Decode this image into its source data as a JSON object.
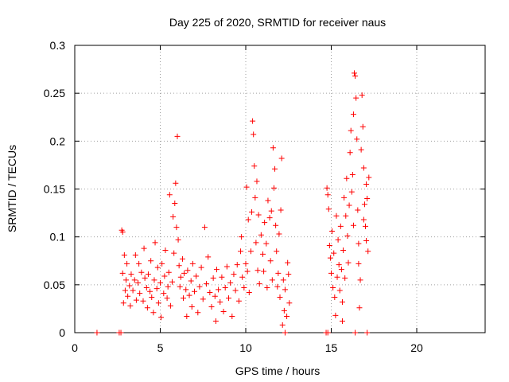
{
  "chart_data": {
    "type": "scatter",
    "title": "Day 225 of 2020, SRMTID for receiver naus",
    "xlabel": "GPS time / hours",
    "ylabel": "SRMTID / TECUs",
    "xlim": [
      0,
      24
    ],
    "ylim": [
      0,
      0.3
    ],
    "x_ticks": [
      0,
      5,
      10,
      15,
      20
    ],
    "x_tick_labels": [
      "0",
      "5",
      "10",
      "15",
      "20"
    ],
    "y_ticks": [
      0,
      0.05,
      0.1,
      0.15,
      0.2,
      0.25,
      0.3
    ],
    "y_tick_labels": [
      "0",
      "0.05",
      "0.1",
      "0.15",
      "0.2",
      "0.25",
      "0.3"
    ],
    "grid": true,
    "marker": "+",
    "series": [
      {
        "name": "SRMTID",
        "color": "#ff0000",
        "points": [
          [
            1.3,
            0.0
          ],
          [
            2.6,
            0.0
          ],
          [
            2.7,
            0.0
          ],
          [
            12.3,
            0.0
          ],
          [
            14.7,
            0.0
          ],
          [
            14.8,
            0.0
          ],
          [
            16.4,
            0.0
          ],
          [
            17.1,
            0.0
          ],
          [
            2.75,
            0.107
          ],
          [
            2.8,
            0.105
          ],
          [
            2.9,
            0.081
          ],
          [
            2.8,
            0.062
          ],
          [
            2.95,
            0.044
          ],
          [
            2.85,
            0.031
          ],
          [
            3.0,
            0.055
          ],
          [
            3.05,
            0.072
          ],
          [
            3.1,
            0.038
          ],
          [
            3.2,
            0.049
          ],
          [
            3.25,
            0.028
          ],
          [
            3.3,
            0.061
          ],
          [
            3.4,
            0.044
          ],
          [
            3.5,
            0.055
          ],
          [
            3.55,
            0.081
          ],
          [
            3.6,
            0.034
          ],
          [
            3.7,
            0.052
          ],
          [
            3.75,
            0.072
          ],
          [
            3.8,
            0.041
          ],
          [
            3.9,
            0.063
          ],
          [
            4.0,
            0.033
          ],
          [
            4.05,
            0.088
          ],
          [
            4.1,
            0.057
          ],
          [
            4.2,
            0.047
          ],
          [
            4.25,
            0.026
          ],
          [
            4.3,
            0.061
          ],
          [
            4.4,
            0.043
          ],
          [
            4.45,
            0.075
          ],
          [
            4.5,
            0.037
          ],
          [
            4.6,
            0.021
          ],
          [
            4.65,
            0.055
          ],
          [
            4.7,
            0.094
          ],
          [
            4.8,
            0.046
          ],
          [
            4.85,
            0.068
          ],
          [
            4.9,
            0.031
          ],
          [
            5.0,
            0.052
          ],
          [
            5.05,
            0.016
          ],
          [
            5.1,
            0.072
          ],
          [
            5.2,
            0.041
          ],
          [
            5.25,
            0.059
          ],
          [
            5.3,
            0.086
          ],
          [
            5.4,
            0.036
          ],
          [
            5.45,
            0.048
          ],
          [
            5.5,
            0.063
          ],
          [
            5.55,
            0.144
          ],
          [
            5.6,
            0.028
          ],
          [
            5.7,
            0.053
          ],
          [
            5.75,
            0.121
          ],
          [
            5.8,
            0.083
          ],
          [
            5.85,
            0.135
          ],
          [
            5.9,
            0.156
          ],
          [
            5.95,
            0.11
          ],
          [
            6.0,
            0.205
          ],
          [
            6.05,
            0.097
          ],
          [
            6.1,
            0.07
          ],
          [
            6.15,
            0.048
          ],
          [
            6.2,
            0.058
          ],
          [
            6.3,
            0.077
          ],
          [
            6.35,
            0.036
          ],
          [
            6.4,
            0.062
          ],
          [
            6.5,
            0.045
          ],
          [
            6.55,
            0.017
          ],
          [
            6.6,
            0.065
          ],
          [
            6.7,
            0.039
          ],
          [
            6.8,
            0.054
          ],
          [
            6.85,
            0.027
          ],
          [
            6.9,
            0.072
          ],
          [
            7.0,
            0.043
          ],
          [
            7.1,
            0.059
          ],
          [
            7.2,
            0.021
          ],
          [
            7.3,
            0.048
          ],
          [
            7.4,
            0.068
          ],
          [
            7.5,
            0.035
          ],
          [
            7.6,
            0.11
          ],
          [
            7.7,
            0.051
          ],
          [
            7.8,
            0.079
          ],
          [
            7.9,
            0.042
          ],
          [
            8.0,
            0.027
          ],
          [
            8.1,
            0.057
          ],
          [
            8.2,
            0.038
          ],
          [
            8.25,
            0.012
          ],
          [
            8.3,
            0.066
          ],
          [
            8.4,
            0.045
          ],
          [
            8.5,
            0.032
          ],
          [
            8.6,
            0.058
          ],
          [
            8.7,
            0.022
          ],
          [
            8.8,
            0.047
          ],
          [
            8.9,
            0.069
          ],
          [
            9.0,
            0.036
          ],
          [
            9.1,
            0.052
          ],
          [
            9.2,
            0.017
          ],
          [
            9.3,
            0.061
          ],
          [
            9.4,
            0.044
          ],
          [
            9.5,
            0.071
          ],
          [
            9.6,
            0.033
          ],
          [
            9.7,
            0.085
          ],
          [
            9.75,
            0.1
          ],
          [
            9.8,
            0.058
          ],
          [
            9.9,
            0.047
          ],
          [
            10.0,
            0.072
          ],
          [
            10.05,
            0.152
          ],
          [
            10.1,
            0.064
          ],
          [
            10.15,
            0.118
          ],
          [
            10.2,
            0.042
          ],
          [
            10.3,
            0.085
          ],
          [
            10.35,
            0.126
          ],
          [
            10.4,
            0.221
          ],
          [
            10.45,
            0.207
          ],
          [
            10.5,
            0.174
          ],
          [
            10.55,
            0.141
          ],
          [
            10.6,
            0.094
          ],
          [
            10.65,
            0.158
          ],
          [
            10.7,
            0.065
          ],
          [
            10.75,
            0.123
          ],
          [
            10.8,
            0.051
          ],
          [
            10.9,
            0.102
          ],
          [
            11.0,
            0.082
          ],
          [
            11.05,
            0.064
          ],
          [
            11.1,
            0.115
          ],
          [
            11.2,
            0.093
          ],
          [
            11.25,
            0.047
          ],
          [
            11.3,
            0.138
          ],
          [
            11.4,
            0.12
          ],
          [
            11.45,
            0.075
          ],
          [
            11.5,
            0.127
          ],
          [
            11.55,
            0.055
          ],
          [
            11.6,
            0.193
          ],
          [
            11.65,
            0.151
          ],
          [
            11.7,
            0.171
          ],
          [
            11.75,
            0.112
          ],
          [
            11.8,
            0.085
          ],
          [
            11.85,
            0.048
          ],
          [
            11.9,
            0.062
          ],
          [
            11.95,
            0.103
          ],
          [
            12.0,
            0.037
          ],
          [
            12.05,
            0.128
          ],
          [
            12.1,
            0.182
          ],
          [
            12.2,
            0.055
          ],
          [
            12.25,
            0.023
          ],
          [
            12.3,
            0.045
          ],
          [
            12.4,
            0.017
          ],
          [
            12.45,
            0.073
          ],
          [
            12.5,
            0.061
          ],
          [
            12.55,
            0.031
          ],
          [
            14.75,
            0.151
          ],
          [
            14.8,
            0.144
          ],
          [
            14.85,
            0.129
          ],
          [
            14.9,
            0.091
          ],
          [
            14.95,
            0.078
          ],
          [
            15.0,
            0.062
          ],
          [
            15.05,
            0.106
          ],
          [
            15.1,
            0.047
          ],
          [
            15.15,
            0.083
          ],
          [
            15.2,
            0.037
          ],
          [
            15.3,
            0.122
          ],
          [
            15.35,
            0.058
          ],
          [
            15.4,
            0.097
          ],
          [
            15.45,
            0.071
          ],
          [
            15.5,
            0.044
          ],
          [
            15.55,
            0.111
          ],
          [
            15.6,
            0.066
          ],
          [
            15.65,
            0.032
          ],
          [
            15.7,
            0.086
          ],
          [
            15.75,
            0.141
          ],
          [
            15.8,
            0.057
          ],
          [
            15.85,
            0.122
          ],
          [
            15.9,
            0.161
          ],
          [
            15.95,
            0.101
          ],
          [
            16.0,
            0.073
          ],
          [
            16.05,
            0.133
          ],
          [
            16.1,
            0.188
          ],
          [
            16.15,
            0.211
          ],
          [
            16.2,
            0.147
          ],
          [
            16.25,
            0.165
          ],
          [
            16.3,
            0.228
          ],
          [
            16.35,
            0.271
          ],
          [
            16.4,
            0.268
          ],
          [
            16.45,
            0.245
          ],
          [
            16.5,
            0.202
          ],
          [
            16.55,
            0.128
          ],
          [
            16.6,
            0.072
          ],
          [
            16.65,
            0.026
          ],
          [
            16.7,
            0.055
          ],
          [
            16.75,
            0.191
          ],
          [
            16.8,
            0.248
          ],
          [
            16.85,
            0.215
          ],
          [
            16.9,
            0.172
          ],
          [
            16.95,
            0.134
          ],
          [
            17.0,
            0.111
          ],
          [
            17.05,
            0.155
          ],
          [
            17.1,
            0.14
          ],
          [
            17.15,
            0.085
          ],
          [
            17.2,
            0.162
          ],
          [
            17.05,
            0.096
          ],
          [
            16.9,
            0.118
          ],
          [
            16.6,
            0.093
          ],
          [
            16.3,
            0.112
          ],
          [
            15.25,
            0.018
          ],
          [
            15.65,
            0.012
          ],
          [
            12.15,
            0.008
          ]
        ]
      }
    ]
  }
}
